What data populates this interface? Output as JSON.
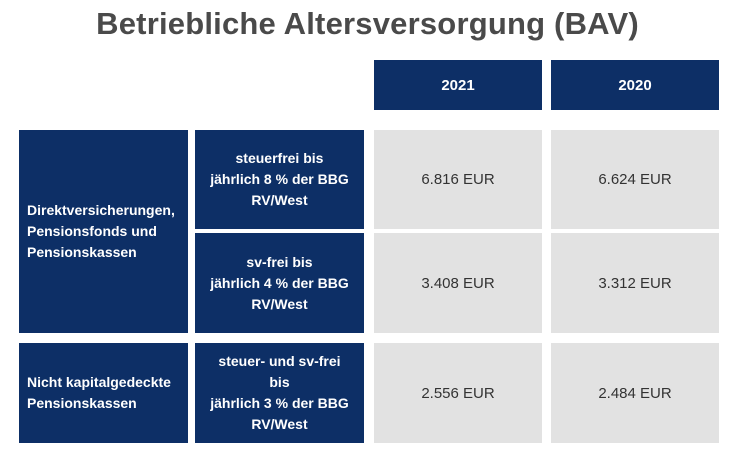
{
  "title": "Betriebliche Altersversorgung (BAV)",
  "columns": [
    "2021",
    "2020"
  ],
  "groups": [
    {
      "label": [
        "Direktversicherungen,",
        "Pensionsfonds und",
        "Pensionskassen"
      ],
      "rows": [
        {
          "condition": [
            "steuerfrei bis",
            "jährlich 8 % der BBG",
            "RV/West"
          ],
          "values": [
            "6.816 EUR",
            "6.624 EUR"
          ]
        },
        {
          "condition": [
            "sv-frei bis",
            "jährlich 4 % der BBG",
            "RV/West"
          ],
          "values": [
            "3.408 EUR",
            "3.312 EUR"
          ]
        }
      ]
    },
    {
      "label": [
        "Nicht kapitalgedeckte",
        "Pensionskassen"
      ],
      "rows": [
        {
          "condition": [
            "steuer- und sv-frei",
            "bis",
            "jährlich 3 % der BBG",
            "RV/West"
          ],
          "values": [
            "2.556 EUR",
            "2.484 EUR"
          ]
        }
      ]
    }
  ],
  "colors": {
    "header_bg": "#0d2f66",
    "value_bg": "#e2e2e2",
    "title": "#4a4a4a"
  }
}
